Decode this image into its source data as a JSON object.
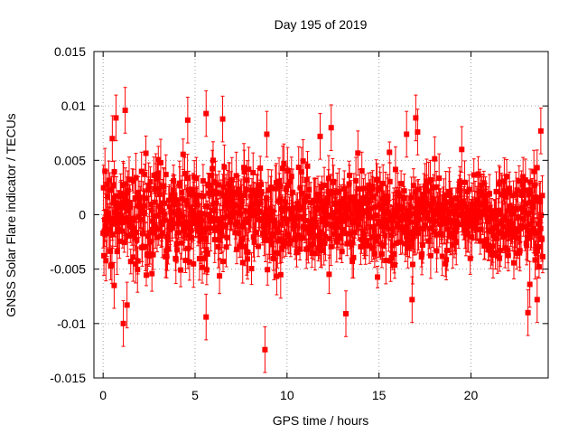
{
  "chart_data": {
    "type": "scatter",
    "title": "Day 195 of 2019",
    "xlabel": "GPS time / hours",
    "ylabel": "GNSS Solar Flare indicator / TECUs",
    "xlim": [
      -0.5,
      24.2
    ],
    "ylim": [
      -0.015,
      0.015
    ],
    "x_ticks": [
      0,
      5,
      10,
      15,
      20
    ],
    "x_tick_labels": [
      "0",
      "5",
      "10",
      "15",
      "20"
    ],
    "y_ticks": [
      -0.015,
      -0.01,
      -0.005,
      0,
      0.005,
      0.01,
      0.015
    ],
    "y_tick_labels": [
      "-0.015",
      "-0.01",
      "-0.005",
      "0",
      "0.005",
      "0.01",
      "0.015"
    ],
    "grid": true,
    "series": [
      {
        "name": "solar flare indicator",
        "color": "#ff0000",
        "marker": "square",
        "error_bars": true,
        "x_range": [
          0,
          23.9
        ],
        "typical_spread": 0.004,
        "typical_error": 0.0015,
        "notable_points": [
          {
            "x": 0.1,
            "y": 0.004
          },
          {
            "x": 0.5,
            "y": 0.007
          },
          {
            "x": 0.6,
            "y": -0.0065
          },
          {
            "x": 0.7,
            "y": 0.0089
          },
          {
            "x": 1.2,
            "y": 0.0096
          },
          {
            "x": 1.1,
            "y": -0.01
          },
          {
            "x": 1.3,
            "y": -0.0083
          },
          {
            "x": 4.6,
            "y": 0.0087
          },
          {
            "x": 5.6,
            "y": 0.0093
          },
          {
            "x": 5.6,
            "y": -0.0094
          },
          {
            "x": 6.5,
            "y": 0.0088
          },
          {
            "x": 8.8,
            "y": -0.0124
          },
          {
            "x": 8.9,
            "y": 0.0074
          },
          {
            "x": 11.8,
            "y": 0.0072
          },
          {
            "x": 12.4,
            "y": 0.008
          },
          {
            "x": 13.2,
            "y": -0.0091
          },
          {
            "x": 16.5,
            "y": 0.0074
          },
          {
            "x": 16.8,
            "y": -0.0078
          },
          {
            "x": 17.0,
            "y": 0.0089
          },
          {
            "x": 17.1,
            "y": 0.0076
          },
          {
            "x": 19.5,
            "y": 0.006
          },
          {
            "x": 23.1,
            "y": -0.009
          },
          {
            "x": 23.2,
            "y": -0.0064
          },
          {
            "x": 23.8,
            "y": 0.0077
          },
          {
            "x": 23.6,
            "y": -0.0078
          }
        ]
      }
    ]
  }
}
